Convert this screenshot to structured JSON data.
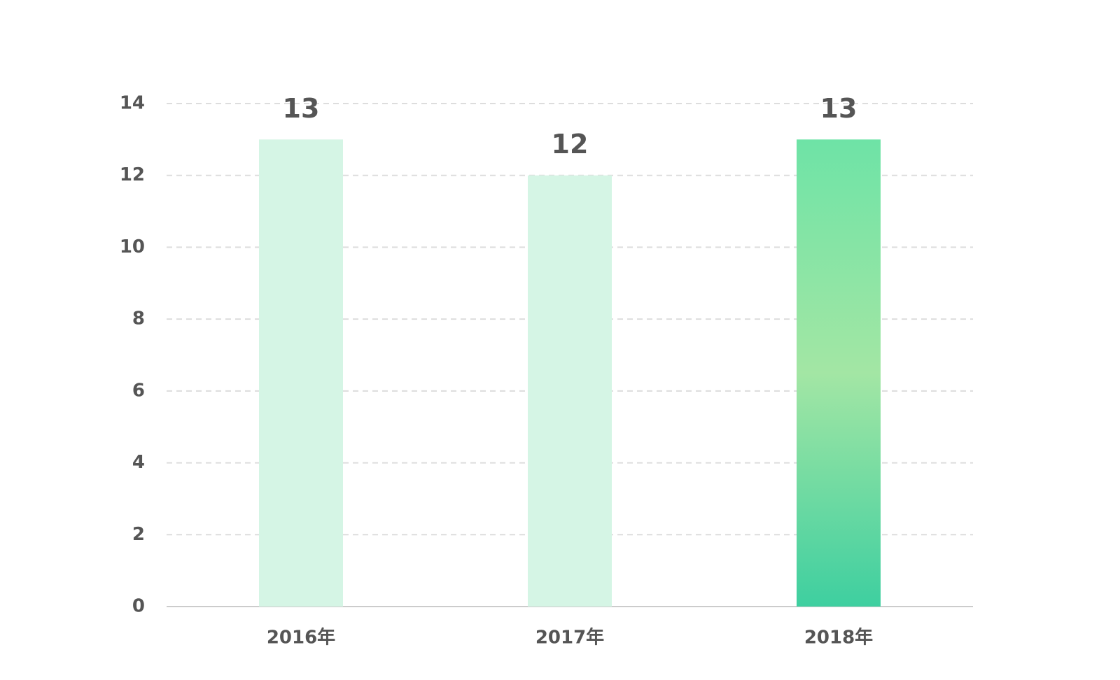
{
  "chart_data": {
    "type": "bar",
    "categories": [
      "2016年",
      "2017年",
      "2018年"
    ],
    "values": [
      13,
      12,
      13
    ],
    "colors": [
      "#d5f5e5",
      "#d5f5e5",
      [
        "#6ee3a6",
        "#a3e6a4",
        "#3ecfa0"
      ]
    ],
    "ylim": [
      0,
      14
    ],
    "yticks": [
      0,
      2,
      4,
      6,
      8,
      10,
      12,
      14
    ],
    "grid": true
  }
}
